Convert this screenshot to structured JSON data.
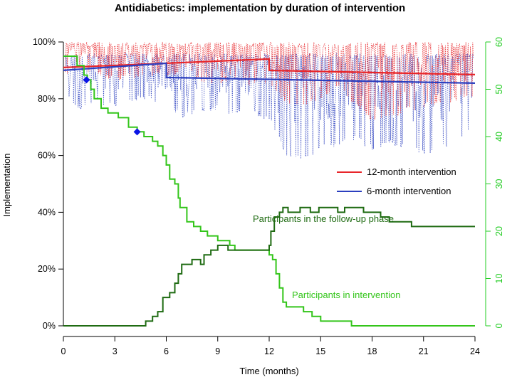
{
  "chart_data": {
    "type": "line",
    "title": "Antidiabetics: implementation by duration of intervention",
    "xlabel": "Time (months)",
    "ylabel": "Implementation",
    "xlim": [
      0,
      24
    ],
    "ylim": [
      0,
      1
    ],
    "x_ticks": [
      0,
      3,
      6,
      9,
      12,
      15,
      18,
      21,
      24
    ],
    "y_ticks": [
      0,
      0.2,
      0.4,
      0.6,
      0.8,
      1.0
    ],
    "y_tick_labels": [
      "0%",
      "20%",
      "40%",
      "60%",
      "80%",
      "100%"
    ],
    "right_axis": {
      "ylim": [
        0,
        60
      ],
      "ticks": [
        0,
        10,
        20,
        30,
        40,
        50,
        60
      ],
      "color": "#22cc22"
    },
    "legend": [
      {
        "name": "12-month intervention",
        "color": "#e8262a"
      },
      {
        "name": "6-month intervention",
        "color": "#2b3fbf"
      }
    ],
    "series": [
      {
        "name": "12-month intervention",
        "color": "#e8262a",
        "trend": [
          [
            0,
            0.91
          ],
          [
            12,
            0.94
          ],
          [
            12,
            0.9
          ],
          [
            24,
            0.885
          ]
        ],
        "daily_min": [
          [
            0,
            0.88
          ],
          [
            0.5,
            0.86
          ],
          [
            1,
            0.9
          ],
          [
            2,
            0.88
          ],
          [
            3,
            0.86
          ],
          [
            4,
            0.87
          ],
          [
            5,
            0.88
          ],
          [
            6,
            0.87
          ],
          [
            7,
            0.9
          ],
          [
            8,
            0.86
          ],
          [
            9,
            0.85
          ],
          [
            10,
            0.87
          ],
          [
            11,
            0.84
          ],
          [
            12,
            0.85
          ],
          [
            13,
            0.78
          ],
          [
            14,
            0.77
          ],
          [
            15,
            0.8
          ],
          [
            16,
            0.83
          ],
          [
            17,
            0.78
          ],
          [
            18,
            0.72
          ],
          [
            19,
            0.73
          ],
          [
            20,
            0.75
          ],
          [
            21,
            0.77
          ],
          [
            22,
            0.78
          ],
          [
            23,
            0.79
          ],
          [
            24,
            0.8
          ]
        ],
        "daily_max": 1.0
      },
      {
        "name": "6-month intervention",
        "color": "#2b3fbf",
        "trend": [
          [
            0,
            0.9
          ],
          [
            6,
            0.925
          ],
          [
            6,
            0.875
          ],
          [
            24,
            0.855
          ]
        ],
        "daily_min": [
          [
            0,
            0.82
          ],
          [
            0.5,
            0.78
          ],
          [
            1,
            0.76
          ],
          [
            2,
            0.78
          ],
          [
            3,
            0.77
          ],
          [
            4,
            0.79
          ],
          [
            5,
            0.8
          ],
          [
            6,
            0.77
          ],
          [
            7,
            0.73
          ],
          [
            8,
            0.75
          ],
          [
            9,
            0.76
          ],
          [
            10,
            0.74
          ],
          [
            11,
            0.75
          ],
          [
            12,
            0.72
          ],
          [
            13,
            0.6
          ],
          [
            14,
            0.58
          ],
          [
            15,
            0.62
          ],
          [
            16,
            0.63
          ],
          [
            17,
            0.65
          ],
          [
            18,
            0.62
          ],
          [
            19,
            0.64
          ],
          [
            20,
            0.62
          ],
          [
            21,
            0.6
          ],
          [
            22,
            0.62
          ],
          [
            23,
            0.64
          ],
          [
            24,
            0.7
          ]
        ],
        "daily_max": 0.96
      },
      {
        "name": "Participants in intervention",
        "color": "#33c51a",
        "axis": "right",
        "steps": [
          [
            0,
            57
          ],
          [
            0.3,
            57
          ],
          [
            0.8,
            55
          ],
          [
            1.2,
            53
          ],
          [
            1.4,
            52
          ],
          [
            1.6,
            50
          ],
          [
            1.8,
            48
          ],
          [
            2.2,
            46
          ],
          [
            2.6,
            45
          ],
          [
            3.2,
            44
          ],
          [
            3.8,
            42
          ],
          [
            4.3,
            41
          ],
          [
            4.7,
            40
          ],
          [
            5.2,
            39
          ],
          [
            5.5,
            38
          ],
          [
            5.8,
            36
          ],
          [
            6.0,
            34
          ],
          [
            6.2,
            31
          ],
          [
            6.5,
            30
          ],
          [
            6.7,
            27
          ],
          [
            6.8,
            25
          ],
          [
            7.2,
            22
          ],
          [
            7.6,
            21
          ],
          [
            8,
            20
          ],
          [
            8.4,
            19
          ],
          [
            9,
            18
          ],
          [
            9.7,
            17
          ],
          [
            10,
            16
          ],
          [
            12,
            15
          ],
          [
            12.2,
            14
          ],
          [
            12.4,
            11
          ],
          [
            12.6,
            8
          ],
          [
            12.8,
            5
          ],
          [
            13,
            4
          ],
          [
            14,
            3
          ],
          [
            14.5,
            2
          ],
          [
            15,
            1
          ],
          [
            16,
            1
          ],
          [
            16.8,
            0
          ],
          [
            24,
            0
          ]
        ]
      },
      {
        "name": "Participants in the follow-up phase",
        "color": "#1f6b12",
        "axis": "right",
        "steps": [
          [
            0,
            0
          ],
          [
            4.7,
            0
          ],
          [
            4.8,
            1
          ],
          [
            5.2,
            2
          ],
          [
            5.5,
            3
          ],
          [
            5.8,
            6
          ],
          [
            6.2,
            7
          ],
          [
            6.5,
            9
          ],
          [
            6.7,
            11
          ],
          [
            6.9,
            13
          ],
          [
            7.5,
            14
          ],
          [
            8,
            13
          ],
          [
            8.2,
            15
          ],
          [
            8.6,
            16
          ],
          [
            9,
            17
          ],
          [
            9.6,
            16
          ],
          [
            10,
            16
          ],
          [
            12,
            17
          ],
          [
            12.1,
            20
          ],
          [
            12.3,
            23
          ],
          [
            12.6,
            24
          ],
          [
            12.8,
            25
          ],
          [
            13.1,
            24
          ],
          [
            13.8,
            25
          ],
          [
            14.4,
            24
          ],
          [
            14.9,
            25
          ],
          [
            15.5,
            25
          ],
          [
            16,
            24
          ],
          [
            16.4,
            25
          ],
          [
            17,
            25
          ],
          [
            17.5,
            24
          ],
          [
            18,
            24
          ],
          [
            18.5,
            23
          ],
          [
            19,
            22
          ],
          [
            20,
            22
          ],
          [
            20.3,
            21
          ],
          [
            24,
            21
          ]
        ]
      }
    ],
    "markers": [
      {
        "x": 1.35,
        "y_right": 52,
        "shape": "diamond",
        "color": "#0a14e6"
      },
      {
        "x": 4.3,
        "y_right": 41,
        "shape": "diamond",
        "color": "#0a14e6"
      }
    ],
    "annotations": [
      {
        "text": "Participants in the follow-up phase",
        "color": "#1f6b12"
      },
      {
        "text": "Participants in intervention",
        "color": "#33c51a"
      }
    ]
  }
}
